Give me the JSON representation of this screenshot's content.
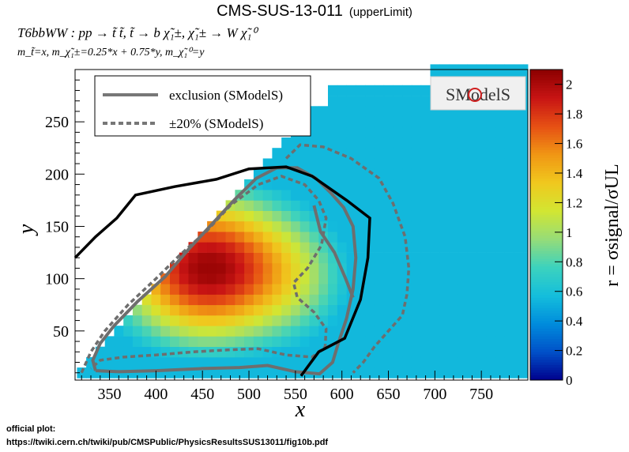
{
  "header": {
    "title": "CMS-SUS-13-011",
    "tag": "(upperLimit)",
    "process": "T6bbWW : pp → t̃ t̃, t̃ → b χ̃₁±, χ̃₁± → W χ̃₁⁰",
    "masses": "m_t̃=x, m_χ̃₁±=0.25*x + 0.75*y, m_χ̃₁⁰=y"
  },
  "footer": {
    "official_label": "official plot:",
    "official_url": "https://twiki.cern.ch/twiki/pub/CMSPublic/PhysicsResultsSUS13011/fig10b.pdf"
  },
  "logo": {
    "text": "SModelS"
  },
  "chart_data": {
    "type": "heatmap",
    "xlabel": "x",
    "ylabel": "y",
    "zlabel": "r = σsignal/σUL",
    "xlim": [
      313,
      800
    ],
    "ylim": [
      3,
      300
    ],
    "zlim": [
      0,
      2.1
    ],
    "x_ticks": [
      350,
      400,
      450,
      500,
      550,
      600,
      650,
      700,
      750
    ],
    "y_ticks": [
      50,
      100,
      150,
      200,
      250
    ],
    "z_ticks": [
      0,
      0.2,
      0.4,
      0.6,
      0.8,
      1,
      1.2,
      1.4,
      1.6,
      1.8,
      2
    ],
    "legend": {
      "placement": "top-left",
      "entries": [
        {
          "label": "exclusion (SModelS)",
          "style": "solid",
          "color": "#777777"
        },
        {
          "label": "±20% (SModelS)",
          "style": "dashed",
          "color": "#777777"
        }
      ]
    },
    "colormap": [
      "#00008c",
      "#0050c8",
      "#008cdc",
      "#14bedc",
      "#3cd2be",
      "#96dc78",
      "#d2e632",
      "#f0c81e",
      "#f09614",
      "#e65014",
      "#c81414",
      "#8c0000"
    ],
    "heatmap": {
      "x_step": 10,
      "y_step": 10,
      "peak": {
        "x": 455,
        "y": 110,
        "r": 2.05
      }
    },
    "curves": {
      "exclusion_official": {
        "color": "#000000",
        "points": [
          [
            313,
            120
          ],
          [
            335,
            140
          ],
          [
            358,
            158
          ],
          [
            378,
            180
          ],
          [
            420,
            188
          ],
          [
            465,
            195
          ],
          [
            500,
            205
          ],
          [
            540,
            207
          ],
          [
            568,
            198
          ],
          [
            605,
            175
          ],
          [
            630,
            158
          ],
          [
            628,
            120
          ],
          [
            620,
            80
          ],
          [
            603,
            43
          ],
          [
            575,
            30
          ],
          [
            556,
            7
          ]
        ]
      },
      "exclusion_smodels": [
        [
          [
            335,
            12
          ],
          [
            332,
            22
          ],
          [
            340,
            38
          ],
          [
            355,
            55
          ],
          [
            380,
            78
          ],
          [
            410,
            102
          ],
          [
            435,
            128
          ],
          [
            460,
            152
          ],
          [
            485,
            176
          ],
          [
            508,
            196
          ],
          [
            530,
            206
          ],
          [
            552,
            206
          ],
          [
            572,
            196
          ],
          [
            588,
            182
          ],
          [
            602,
            168
          ],
          [
            612,
            150
          ],
          [
            615,
            120
          ],
          [
            612,
            90
          ],
          [
            605,
            62
          ],
          [
            596,
            38
          ],
          [
            590,
            20
          ],
          [
            576,
            9
          ],
          [
            550,
            11
          ],
          [
            520,
            17
          ],
          [
            490,
            15
          ],
          [
            450,
            14
          ],
          [
            400,
            12
          ],
          [
            360,
            11
          ],
          [
            335,
            12
          ]
        ],
        [
          [
            570,
            170
          ],
          [
            577,
            145
          ],
          [
            592,
            125
          ],
          [
            604,
            100
          ],
          [
            612,
            82
          ]
        ]
      ],
      "band_smodels": [
        [
          [
            320,
            10
          ],
          [
            330,
            30
          ],
          [
            345,
            50
          ],
          [
            370,
            75
          ],
          [
            400,
            100
          ],
          [
            425,
            122
          ],
          [
            455,
            146
          ],
          [
            480,
            170
          ],
          [
            510,
            190
          ],
          [
            535,
            198
          ],
          [
            560,
            190
          ],
          [
            575,
            175
          ],
          [
            583,
            158
          ],
          [
            578,
            132
          ],
          [
            563,
            110
          ],
          [
            548,
            96
          ],
          [
            552,
            82
          ],
          [
            570,
            68
          ],
          [
            583,
            52
          ],
          [
            582,
            35
          ],
          [
            568,
            25
          ],
          [
            540,
            27
          ],
          [
            510,
            33
          ],
          [
            480,
            32
          ],
          [
            440,
            30
          ],
          [
            400,
            27
          ],
          [
            365,
            25
          ],
          [
            340,
            22
          ],
          [
            330,
            14
          ]
        ],
        [
          [
            540,
            215
          ],
          [
            555,
            228
          ],
          [
            580,
            226
          ],
          [
            610,
            215
          ],
          [
            640,
            196
          ],
          [
            655,
            172
          ],
          [
            668,
            140
          ],
          [
            672,
            110
          ],
          [
            670,
            85
          ],
          [
            665,
            65
          ],
          [
            648,
            48
          ],
          [
            635,
            35
          ],
          [
            623,
            20
          ],
          [
            612,
            10
          ]
        ]
      ]
    }
  }
}
